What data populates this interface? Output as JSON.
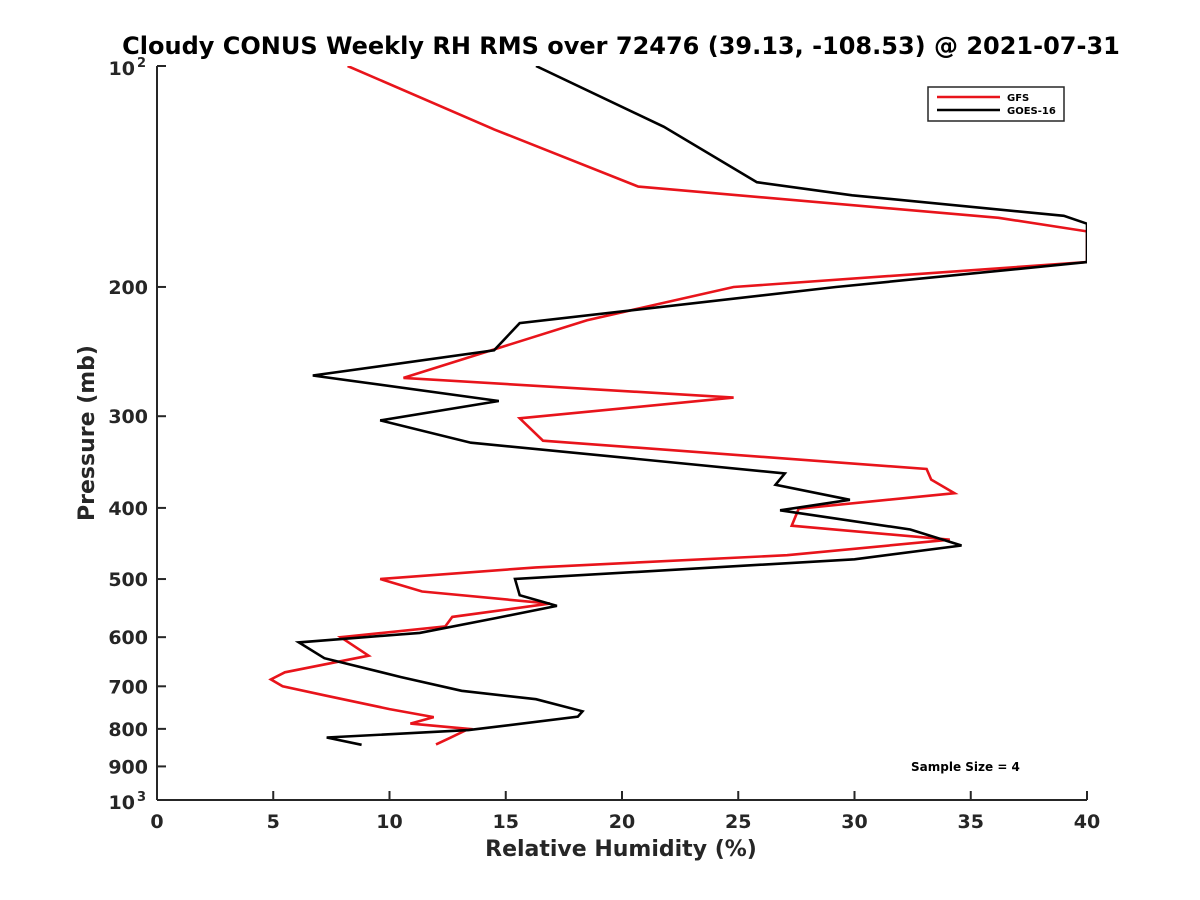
{
  "chart_data": {
    "type": "line",
    "title": "Cloudy CONUS Weekly RH RMS over 72476 (39.13, -108.53) @ 2021-07-31",
    "xlabel": "Relative Humidity (%)",
    "ylabel": "Pressure (mb)",
    "xlim": [
      0,
      40
    ],
    "ylim": [
      100,
      1000
    ],
    "y_scale": "log",
    "y_reversed": true,
    "x_ticks": [
      0,
      5,
      10,
      15,
      20,
      25,
      30,
      35,
      40
    ],
    "x_tick_labels": [
      "0",
      "5",
      "10",
      "15",
      "20",
      "25",
      "30",
      "35",
      "40"
    ],
    "y_ticks": [
      200,
      300,
      400,
      500,
      600,
      700,
      800,
      900
    ],
    "y_tick_labels": [
      "200",
      "300",
      "400",
      "500",
      "600",
      "700",
      "800",
      "900"
    ],
    "y_end_labels": [
      {
        "value": 100,
        "base": "10",
        "exp": "2"
      },
      {
        "value": 1000,
        "base": "10",
        "exp": "3"
      }
    ],
    "grid": false,
    "legend_position": "top-right",
    "annotation": "Sample Size = 4",
    "series": [
      {
        "name": "GFS",
        "color": "#e8141b",
        "points": [
          [
            8.2,
            100
          ],
          [
            14.5,
            122
          ],
          [
            20.7,
            146
          ],
          [
            36.2,
            161
          ],
          [
            40.0,
            168
          ],
          [
            40.0,
            185
          ],
          [
            24.8,
            200
          ],
          [
            18.5,
            222
          ],
          [
            10.6,
            266
          ],
          [
            24.8,
            283
          ],
          [
            15.6,
            302
          ],
          [
            16.6,
            324
          ],
          [
            33.1,
            354
          ],
          [
            33.3,
            366
          ],
          [
            34.3,
            382
          ],
          [
            27.6,
            401
          ],
          [
            27.3,
            423
          ],
          [
            34.1,
            442
          ],
          [
            27.1,
            464
          ],
          [
            16.3,
            482
          ],
          [
            9.6,
            500
          ],
          [
            11.4,
            520
          ],
          [
            16.9,
            540
          ],
          [
            12.7,
            563
          ],
          [
            12.4,
            580
          ],
          [
            7.9,
            600
          ],
          [
            9.1,
            636
          ],
          [
            5.5,
            670
          ],
          [
            4.9,
            685
          ],
          [
            5.4,
            700
          ],
          [
            7.2,
            720
          ],
          [
            10.0,
            752
          ],
          [
            11.9,
            771
          ],
          [
            10.9,
            787
          ],
          [
            13.4,
            800
          ],
          [
            12.6,
            823
          ],
          [
            12.0,
            840
          ]
        ]
      },
      {
        "name": "GOES-16",
        "color": "#000000",
        "points": [
          [
            16.3,
            100
          ],
          [
            21.8,
            121
          ],
          [
            25.8,
            144
          ],
          [
            29.9,
            150
          ],
          [
            39.0,
            160
          ],
          [
            40.0,
            164
          ],
          [
            40.0,
            185
          ],
          [
            29.2,
            200
          ],
          [
            15.6,
            224
          ],
          [
            14.5,
            244
          ],
          [
            6.7,
            264
          ],
          [
            14.7,
            286
          ],
          [
            9.6,
            304
          ],
          [
            13.5,
            326
          ],
          [
            27.0,
            359
          ],
          [
            26.6,
            372
          ],
          [
            29.8,
            390
          ],
          [
            26.8,
            403
          ],
          [
            32.4,
            428
          ],
          [
            34.6,
            450
          ],
          [
            30.0,
            470
          ],
          [
            15.4,
            500
          ],
          [
            15.6,
            526
          ],
          [
            17.2,
            544
          ],
          [
            14.6,
            565
          ],
          [
            11.3,
            592
          ],
          [
            6.1,
            610
          ],
          [
            7.2,
            641
          ],
          [
            10.5,
            680
          ],
          [
            13.1,
            710
          ],
          [
            16.3,
            729
          ],
          [
            18.3,
            757
          ],
          [
            18.1,
            770
          ],
          [
            13.4,
            803
          ],
          [
            7.3,
            822
          ],
          [
            8.8,
            841
          ]
        ]
      }
    ]
  }
}
